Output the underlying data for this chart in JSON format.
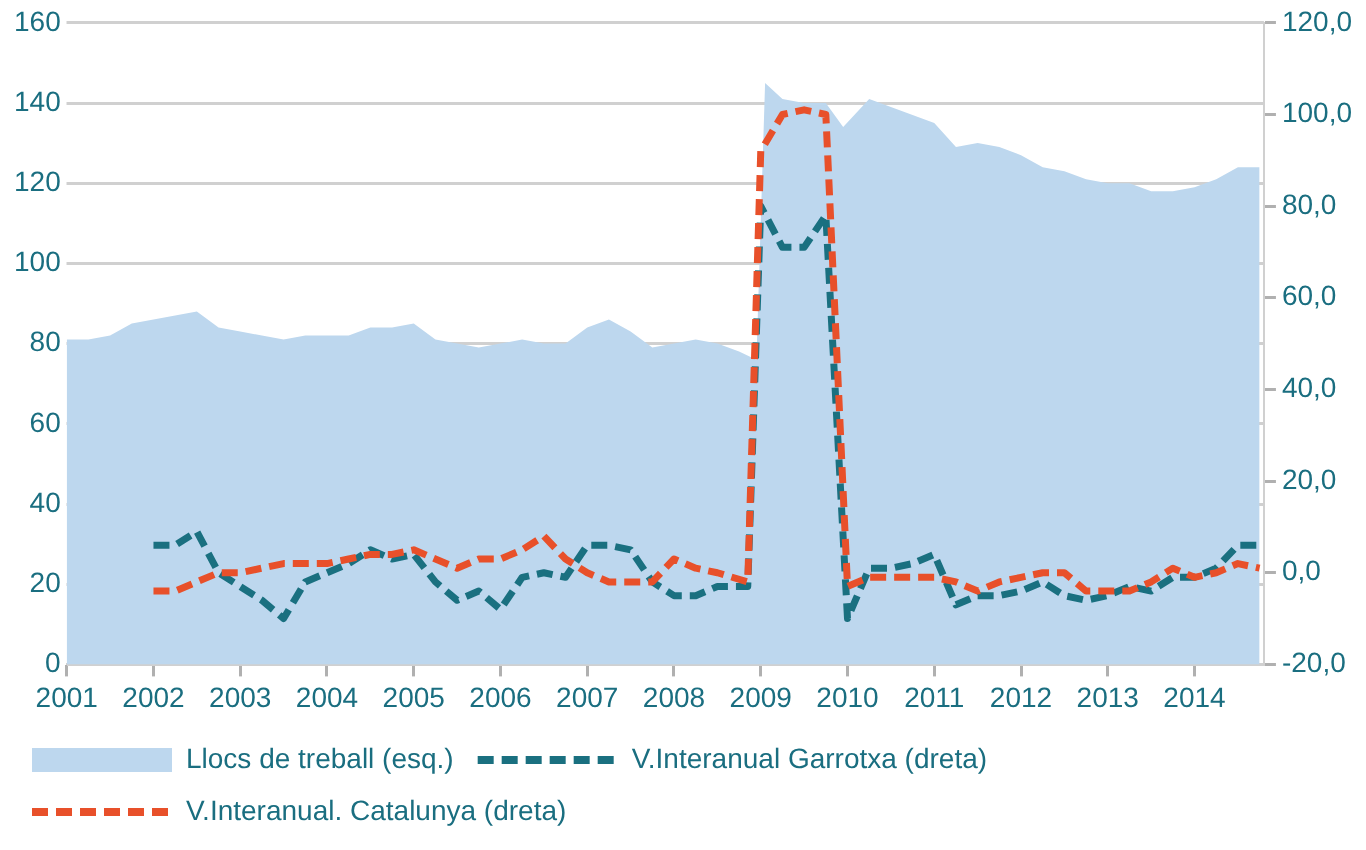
{
  "chart_data": {
    "type": "line",
    "xlim": [
      2001,
      2014.8
    ],
    "xticks": [
      2001,
      2002,
      2003,
      2004,
      2005,
      2006,
      2007,
      2008,
      2009,
      2010,
      2011,
      2012,
      2013,
      2014
    ],
    "ylim": [
      0,
      160
    ],
    "yticks": [
      0,
      20,
      40,
      60,
      80,
      100,
      120,
      140,
      160
    ],
    "y2lim": [
      -20,
      120
    ],
    "y2ticks": [
      {
        "value": -20,
        "label": "-20,0"
      },
      {
        "value": 0,
        "label": "0,0"
      },
      {
        "value": 20,
        "label": "20,0"
      },
      {
        "value": 40,
        "label": "40,0"
      },
      {
        "value": 60,
        "label": "60,0"
      },
      {
        "value": 80,
        "label": "80,0"
      },
      {
        "value": 100,
        "label": "100,0"
      },
      {
        "value": 120,
        "label": "120,0"
      }
    ],
    "grid": "y",
    "legend": "bottom",
    "marker": "none",
    "series": [
      {
        "name": "Llocs de treball (esq.)",
        "type": "area",
        "color": "#bdd7ee",
        "x": [
          2001,
          2001.25,
          2001.5,
          2001.75,
          2002,
          2002.25,
          2002.5,
          2002.75,
          2003,
          2003.25,
          2003.5,
          2003.75,
          2004,
          2004.25,
          2004.5,
          2004.75,
          2005,
          2005.25,
          2005.5,
          2005.75,
          2006,
          2006.25,
          2006.5,
          2006.75,
          2007,
          2007.25,
          2007.5,
          2007.75,
          2008,
          2008.25,
          2008.5,
          2008.75,
          2008.95,
          2009.05,
          2009.25,
          2009.5,
          2009.75,
          2009.95,
          2010.25,
          2010.5,
          2010.75,
          2011,
          2011.25,
          2011.5,
          2011.75,
          2012,
          2012.25,
          2012.5,
          2012.75,
          2013,
          2013.25,
          2013.5,
          2013.75,
          2014,
          2014.25,
          2014.5,
          2014.75
        ],
        "values": [
          81,
          81,
          82,
          85,
          86,
          87,
          88,
          84,
          83,
          82,
          81,
          82,
          82,
          82,
          84,
          84,
          85,
          81,
          80,
          79,
          80,
          81,
          80,
          80,
          84,
          86,
          83,
          79,
          80,
          81,
          80,
          78,
          76,
          145,
          141,
          140,
          140,
          134,
          141,
          139,
          137,
          135,
          129,
          130,
          129,
          127,
          124,
          123,
          121,
          120,
          120,
          118,
          118,
          119,
          121,
          124,
          124
        ]
      },
      {
        "name": "V.Interanual Garrotxa (dreta)",
        "type": "line",
        "axis": "y2",
        "line_style": "dashed",
        "color": "#1a7080",
        "x": [
          2002,
          2002.25,
          2002.5,
          2002.75,
          2003,
          2003.25,
          2003.5,
          2003.75,
          2004,
          2004.25,
          2004.5,
          2004.75,
          2005,
          2005.25,
          2005.5,
          2005.75,
          2006,
          2006.25,
          2006.5,
          2006.75,
          2007,
          2007.25,
          2007.5,
          2007.75,
          2008,
          2008.25,
          2008.5,
          2008.85,
          2009,
          2009.25,
          2009.5,
          2009.75,
          2010,
          2010.25,
          2010.5,
          2010.75,
          2011,
          2011.25,
          2011.5,
          2011.75,
          2012,
          2012.25,
          2012.5,
          2012.75,
          2013,
          2013.25,
          2013.5,
          2013.75,
          2014,
          2014.25,
          2014.5,
          2014.75
        ],
        "values": [
          6,
          6,
          9,
          0,
          -3,
          -6,
          -10,
          -2,
          0,
          2,
          5,
          3,
          4,
          -2,
          -6,
          -4,
          -8,
          -1,
          0,
          -1,
          6,
          6,
          5,
          -2,
          -5,
          -5,
          -3,
          -3,
          80,
          71,
          71,
          78,
          -10,
          1,
          1,
          2,
          4,
          -7,
          -5,
          -5,
          -4,
          -2,
          -5,
          -6,
          -5,
          -3,
          -4,
          -1,
          -1,
          1,
          6,
          6
        ]
      },
      {
        "name": "V.Interanual. Catalunya (dreta)",
        "type": "line",
        "axis": "y2",
        "line_style": "dashed",
        "color": "#e8502a",
        "x": [
          2002,
          2002.25,
          2002.5,
          2002.75,
          2003,
          2003.25,
          2003.5,
          2003.75,
          2004,
          2004.25,
          2004.5,
          2004.75,
          2005,
          2005.25,
          2005.5,
          2005.75,
          2006,
          2006.25,
          2006.5,
          2006.75,
          2007,
          2007.25,
          2007.5,
          2007.75,
          2008,
          2008.25,
          2008.5,
          2008.85,
          2009,
          2009.25,
          2009.5,
          2009.75,
          2010,
          2010.25,
          2010.5,
          2010.75,
          2011,
          2011.25,
          2011.5,
          2011.75,
          2012,
          2012.25,
          2012.5,
          2012.75,
          2013,
          2013.25,
          2013.5,
          2013.75,
          2014,
          2014.25,
          2014.5,
          2014.75
        ],
        "values": [
          -4,
          -4,
          -2,
          0,
          0,
          1,
          2,
          2,
          2,
          3,
          4,
          4,
          5,
          3,
          1,
          3,
          3,
          5,
          8,
          3,
          0,
          -2,
          -2,
          -2,
          3,
          1,
          0,
          -2,
          92,
          100,
          101,
          100,
          -3,
          -1,
          -1,
          -1,
          -1,
          -2,
          -4,
          -2,
          -1,
          0,
          0,
          -4,
          -4,
          -4,
          -2,
          1,
          -1,
          0,
          2,
          1
        ]
      }
    ]
  }
}
